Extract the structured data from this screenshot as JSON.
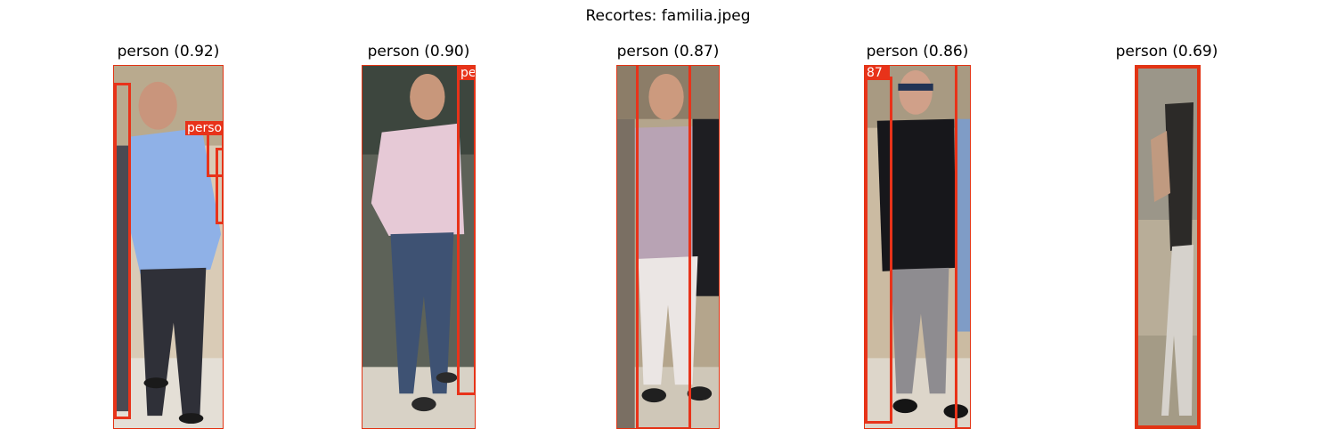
{
  "figure": {
    "title": "Recortes: familia.jpeg"
  },
  "panels": [
    {
      "title": "person (0.92)",
      "overlay_labels": [
        "person"
      ]
    },
    {
      "title": "person (0.90)",
      "overlay_labels": [
        "pe"
      ]
    },
    {
      "title": "person (0.87)",
      "overlay_labels": []
    },
    {
      "title": "person (0.86)",
      "overlay_labels": [
        "87"
      ]
    },
    {
      "title": "person (0.69)",
      "overlay_labels": []
    }
  ],
  "colors": {
    "box": "#e8331a",
    "background": "#ffffff"
  }
}
